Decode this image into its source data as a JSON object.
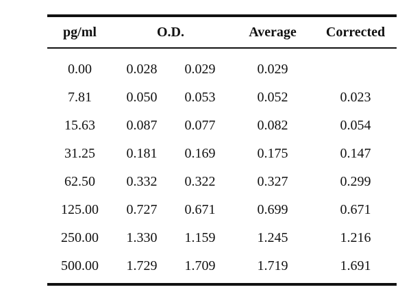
{
  "table": {
    "headers": {
      "pg": "pg/ml",
      "od": "O.D.",
      "average": "Average",
      "corrected": "Corrected"
    },
    "rows": [
      {
        "pg": "0.00",
        "od1": "0.028",
        "od2": "0.029",
        "average": "0.029",
        "corrected": ""
      },
      {
        "pg": "7.81",
        "od1": "0.050",
        "od2": "0.053",
        "average": "0.052",
        "corrected": "0.023"
      },
      {
        "pg": "15.63",
        "od1": "0.087",
        "od2": "0.077",
        "average": "0.082",
        "corrected": "0.054"
      },
      {
        "pg": "31.25",
        "od1": "0.181",
        "od2": "0.169",
        "average": "0.175",
        "corrected": "0.147"
      },
      {
        "pg": "62.50",
        "od1": "0.332",
        "od2": "0.322",
        "average": "0.327",
        "corrected": "0.299"
      },
      {
        "pg": "125.00",
        "od1": "0.727",
        "od2": "0.671",
        "average": "0.699",
        "corrected": "0.671"
      },
      {
        "pg": "250.00",
        "od1": "1.330",
        "od2": "1.159",
        "average": "1.245",
        "corrected": "1.216"
      },
      {
        "pg": "500.00",
        "od1": "1.729",
        "od2": "1.709",
        "average": "1.719",
        "corrected": "1.691"
      }
    ]
  }
}
